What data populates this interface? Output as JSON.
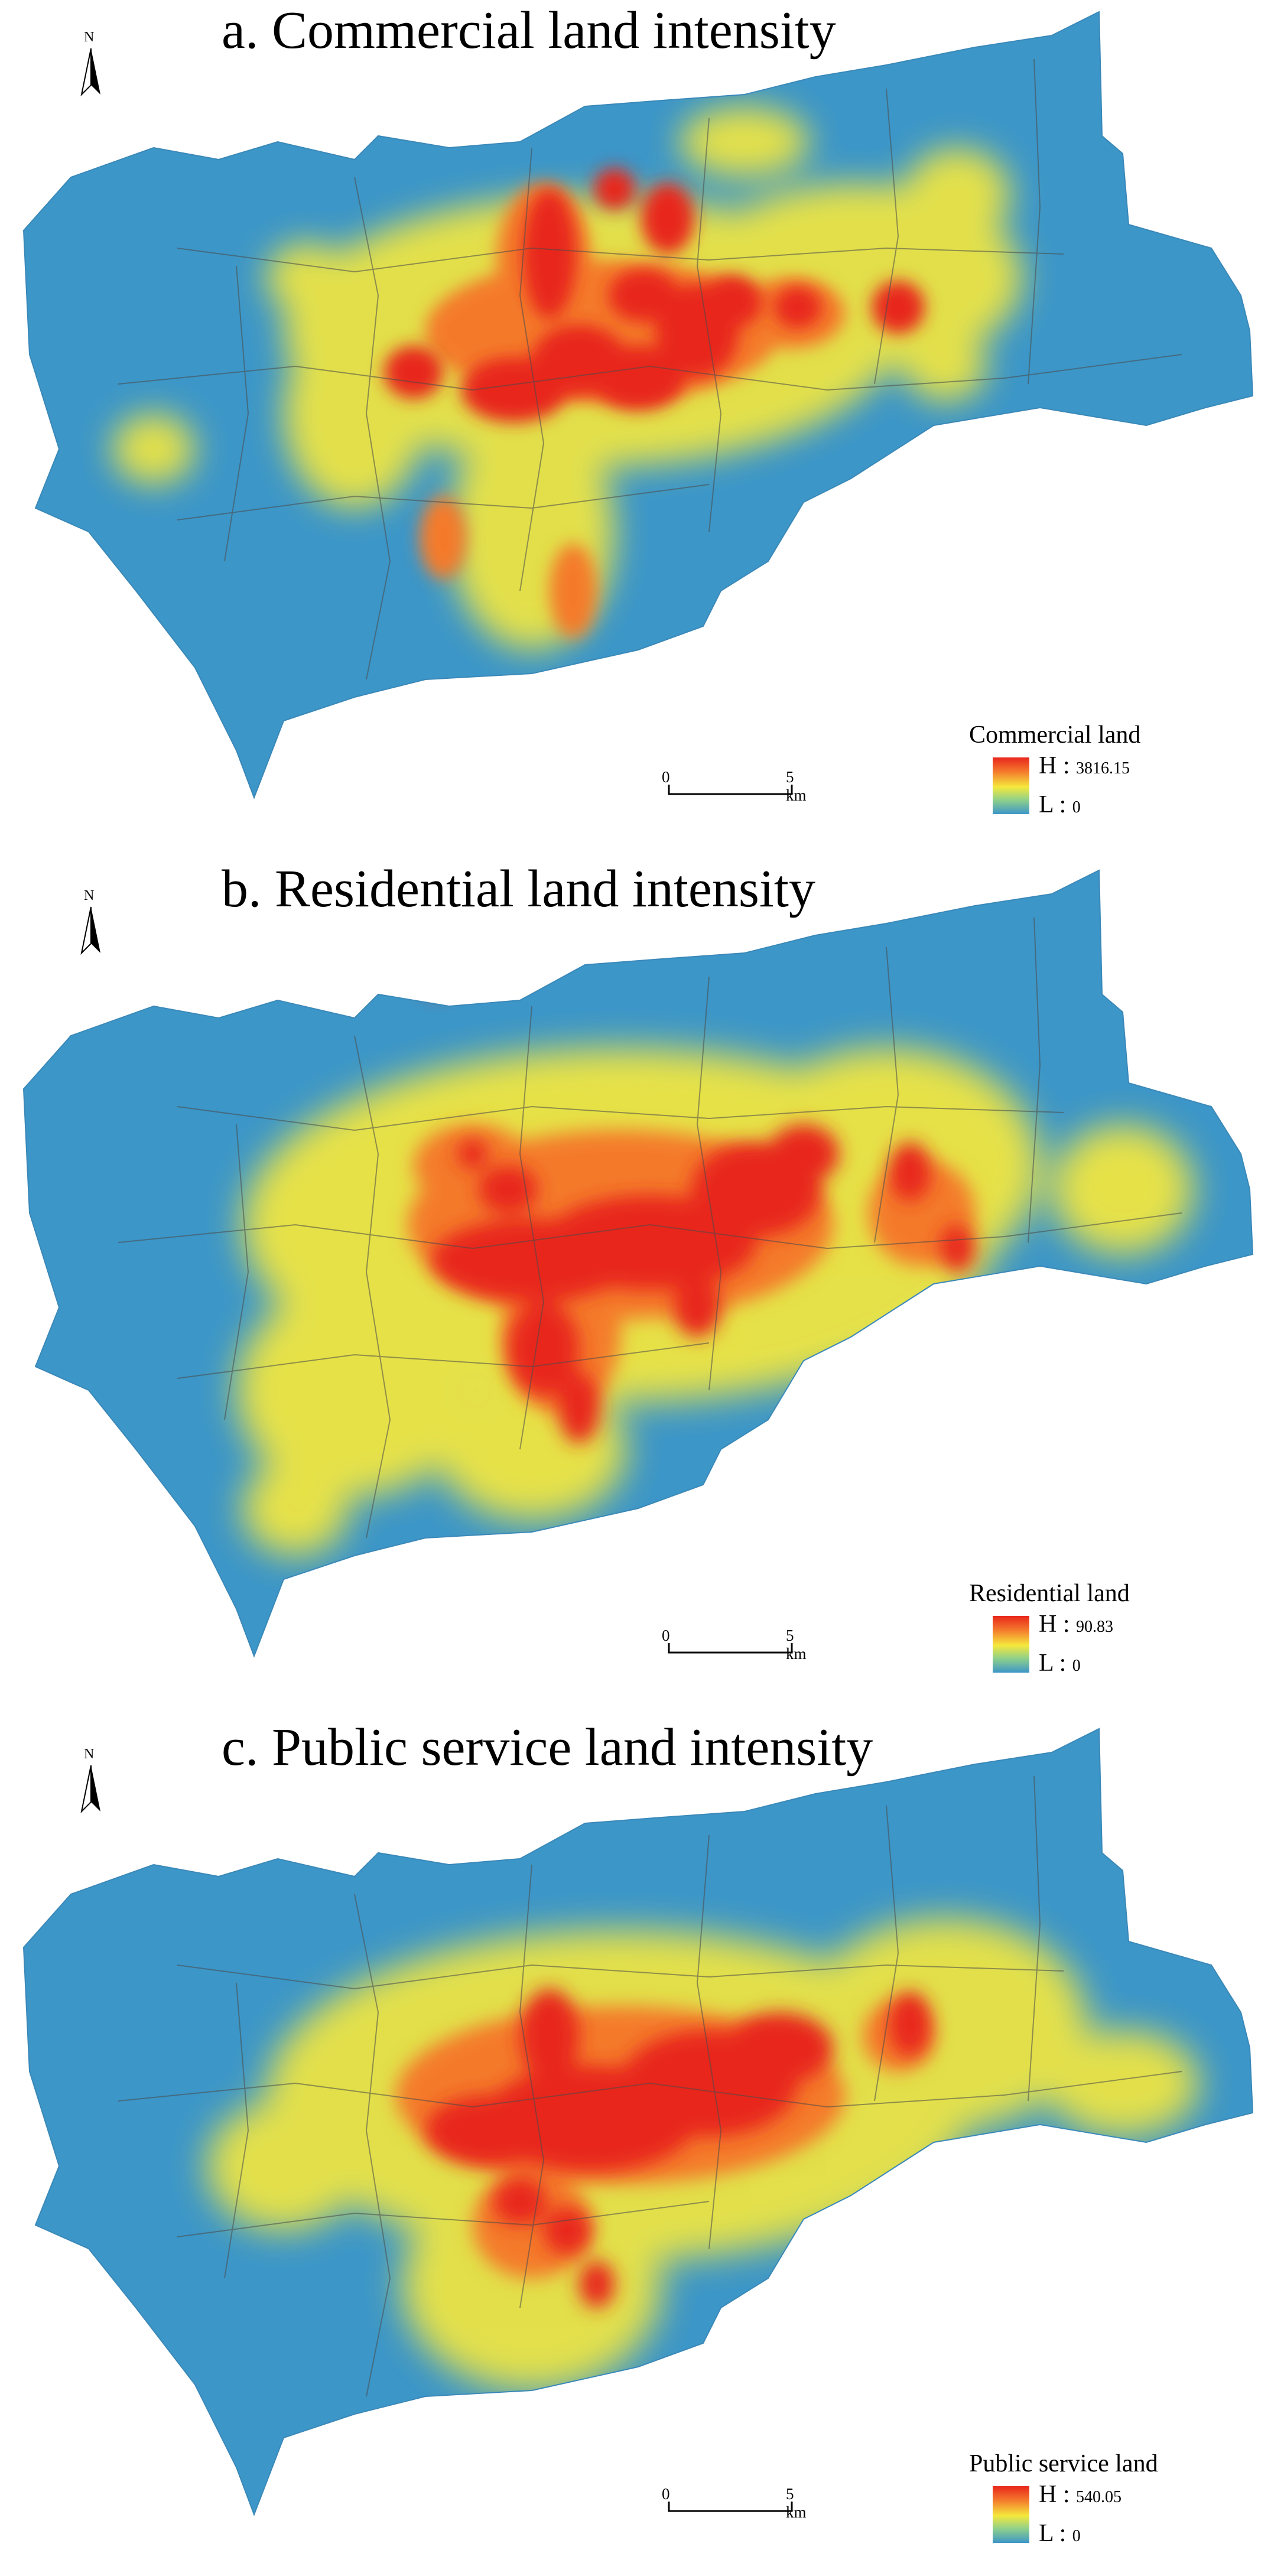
{
  "panels": [
    {
      "title": "a. Commercial land intensity",
      "legend_title": "Commercial land",
      "high_label": "H",
      "high_value": "3816.15",
      "low_label": "L",
      "low_value": "0"
    },
    {
      "title": "b. Residential land intensity",
      "legend_title": "Residential land",
      "high_label": "H",
      "high_value": "90.83",
      "low_label": "L",
      "low_value": "0"
    },
    {
      "title": "c. Public service land intensity",
      "legend_title": "Public service land",
      "high_label": "H",
      "high_value": "540.05",
      "low_label": "L",
      "low_value": "0"
    }
  ],
  "north_label": "N",
  "scale": {
    "start": "0",
    "end": "5 km"
  },
  "colors": {
    "low": "#3c96c8",
    "mid": "#f5e83c",
    "orange": "#f47a2c",
    "high": "#e8261c",
    "boundary": "#4a4a4a"
  }
}
